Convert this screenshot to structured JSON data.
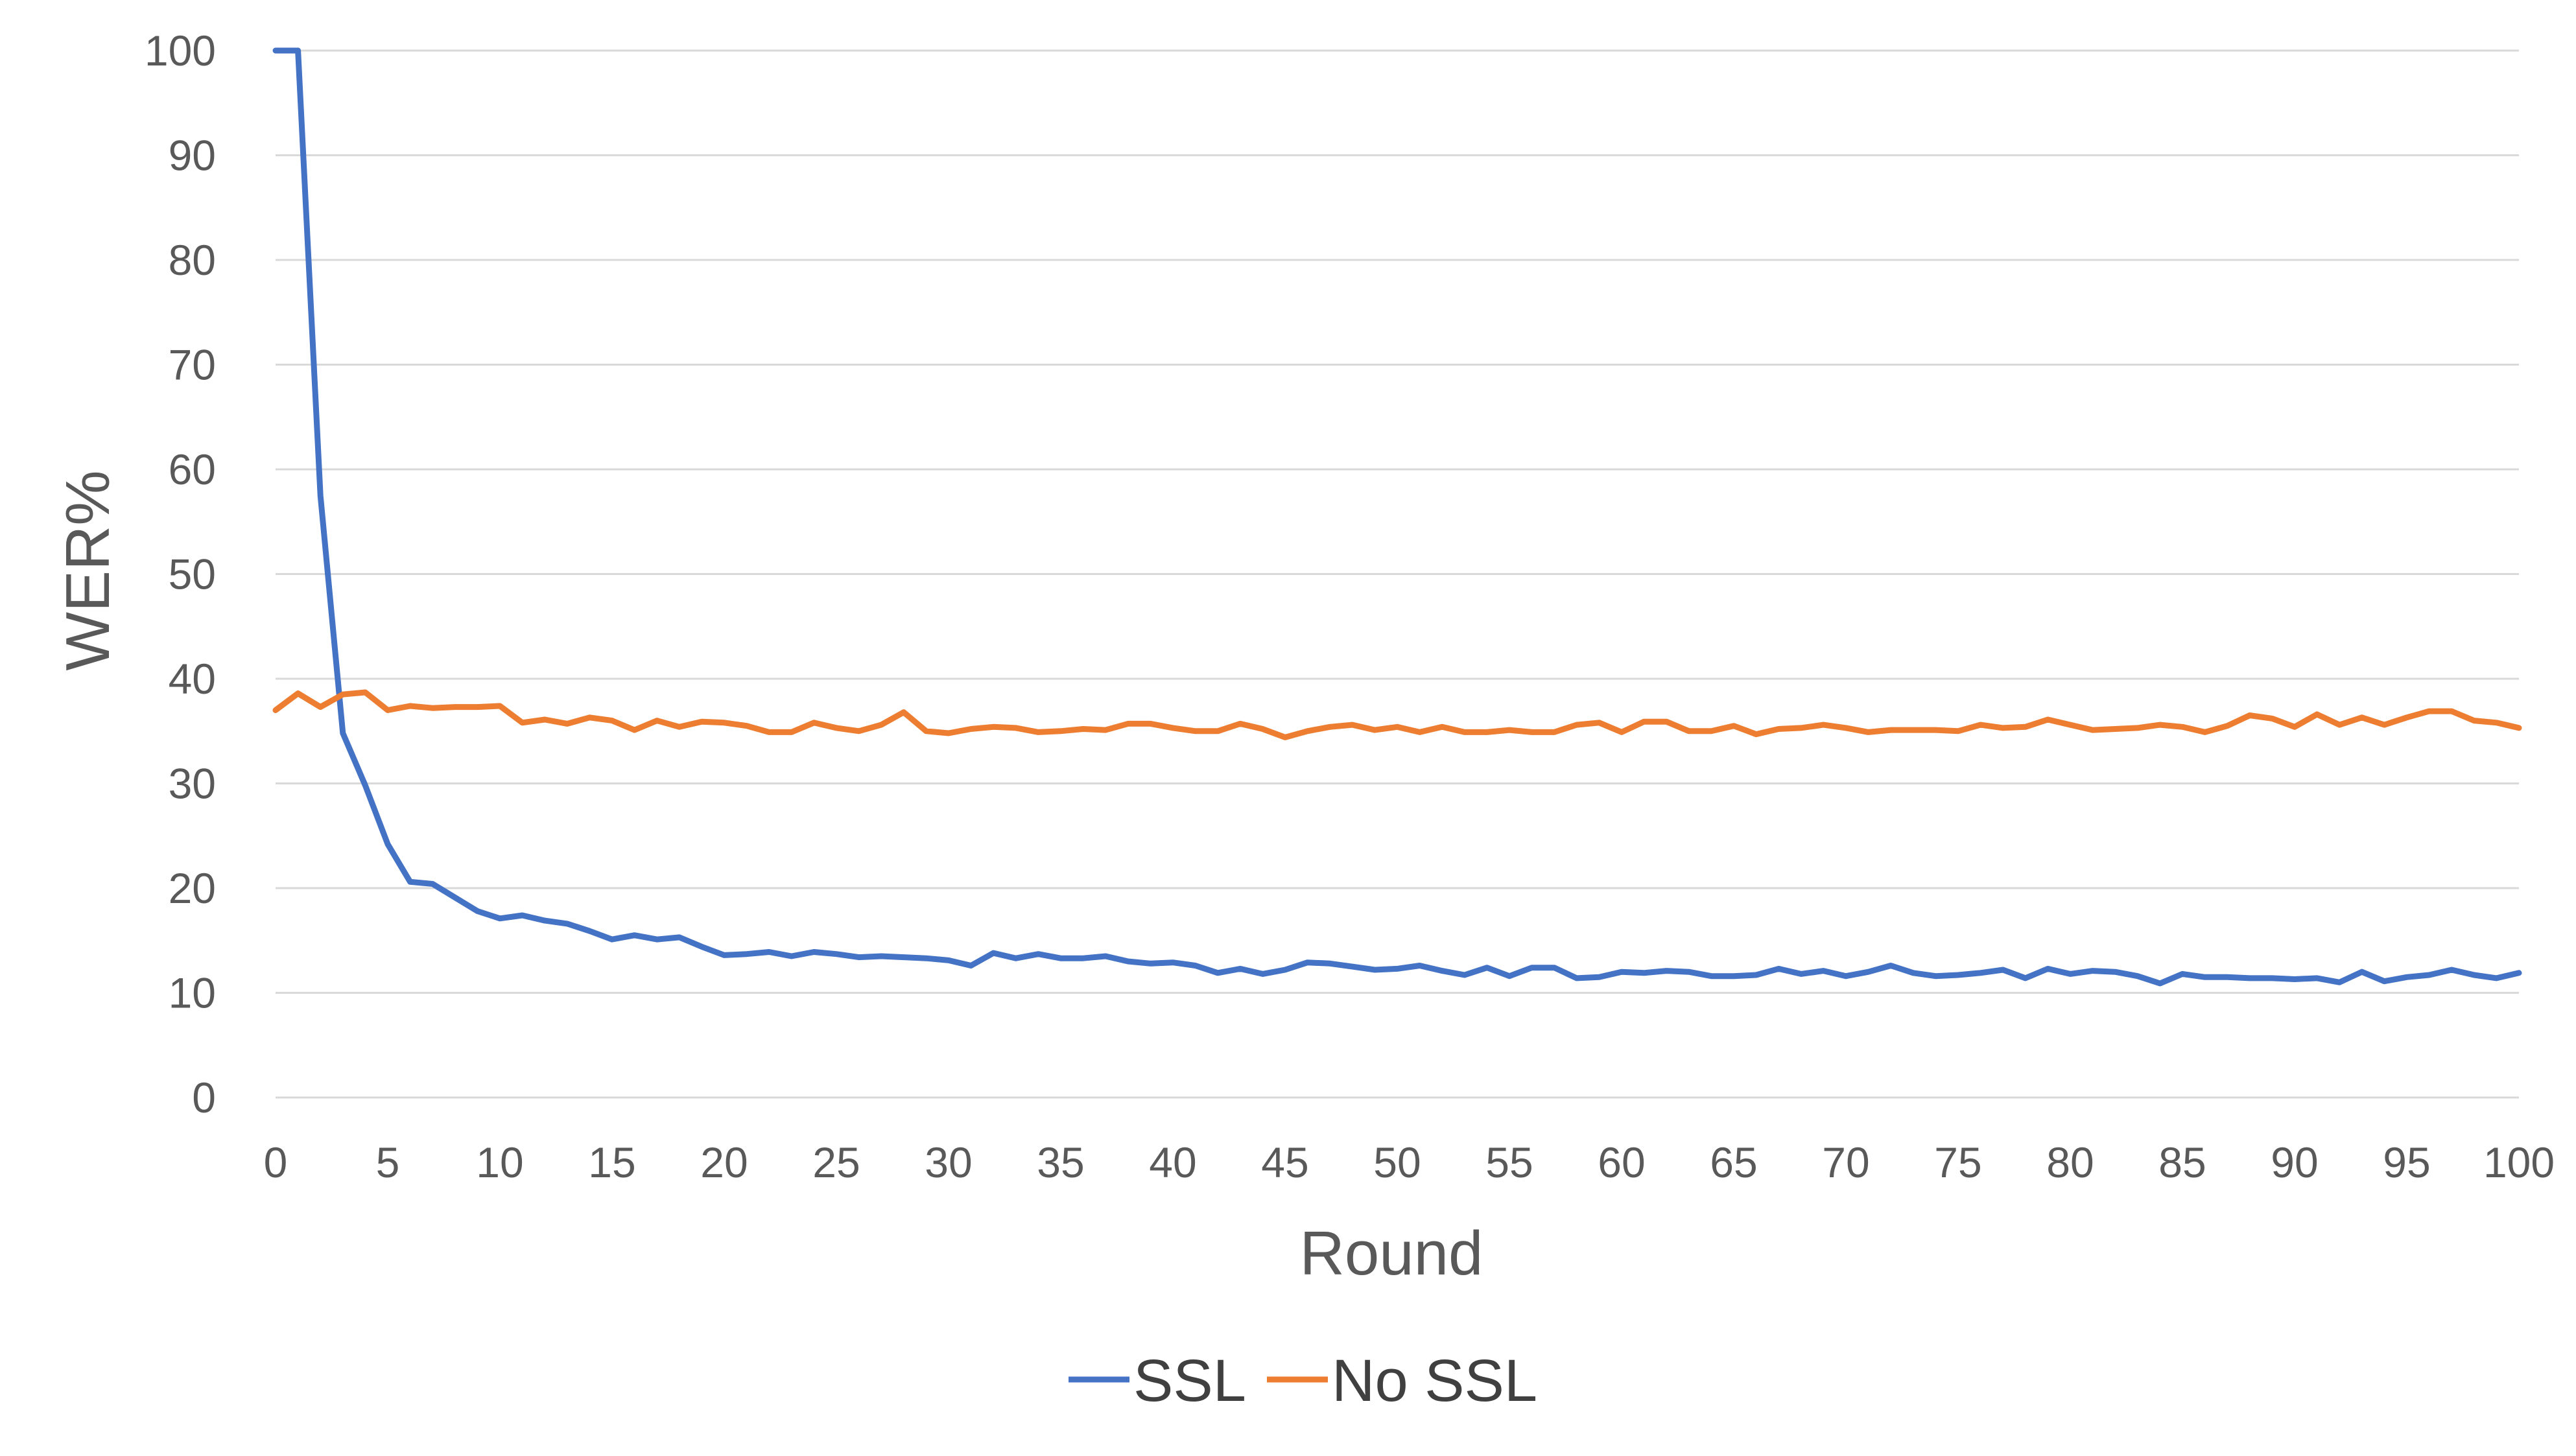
{
  "chart_data": {
    "type": "line",
    "title": "",
    "xlabel": "Round",
    "ylabel": "WER%",
    "xlim": [
      0,
      100
    ],
    "ylim": [
      0,
      100
    ],
    "x_ticks": [
      0,
      5,
      10,
      15,
      20,
      25,
      30,
      35,
      40,
      45,
      50,
      55,
      60,
      65,
      70,
      75,
      80,
      85,
      90,
      95,
      100
    ],
    "y_ticks": [
      0,
      10,
      20,
      30,
      40,
      50,
      60,
      70,
      80,
      90,
      100
    ],
    "grid": "horizontal",
    "legend_position": "bottom",
    "x": [
      0,
      1,
      2,
      3,
      4,
      5,
      6,
      7,
      8,
      9,
      10,
      11,
      12,
      13,
      14,
      15,
      16,
      17,
      18,
      19,
      20,
      21,
      22,
      23,
      24,
      25,
      26,
      27,
      28,
      29,
      30,
      31,
      32,
      33,
      34,
      35,
      36,
      37,
      38,
      39,
      40,
      41,
      42,
      43,
      44,
      45,
      46,
      47,
      48,
      49,
      50,
      51,
      52,
      53,
      54,
      55,
      56,
      57,
      58,
      59,
      60,
      61,
      62,
      63,
      64,
      65,
      66,
      67,
      68,
      69,
      70,
      71,
      72,
      73,
      74,
      75,
      76,
      77,
      78,
      79,
      80,
      81,
      82,
      83,
      84,
      85,
      86,
      87,
      88,
      89,
      90,
      91,
      92,
      93,
      94,
      95,
      96,
      97,
      98,
      99,
      100
    ],
    "series": [
      {
        "name": "SSL",
        "color": "#4472c4",
        "values": [
          100,
          100,
          57.5,
          34.8,
          29.8,
          24.2,
          20.6,
          20.4,
          19.1,
          17.8,
          17.1,
          17.4,
          16.9,
          16.6,
          15.9,
          15.1,
          15.5,
          15.1,
          15.3,
          14.4,
          13.6,
          13.7,
          13.9,
          13.5,
          13.9,
          13.7,
          13.4,
          13.5,
          13.4,
          13.3,
          13.1,
          12.6,
          13.8,
          13.3,
          13.7,
          13.3,
          13.3,
          13.5,
          13.0,
          12.8,
          12.9,
          12.6,
          11.9,
          12.3,
          11.8,
          12.2,
          12.9,
          12.8,
          12.5,
          12.2,
          12.3,
          12.6,
          12.1,
          11.7,
          12.4,
          11.6,
          12.4,
          12.4,
          11.4,
          11.5,
          12.0,
          11.9,
          12.1,
          12.0,
          11.6,
          11.6,
          11.7,
          12.3,
          11.8,
          12.1,
          11.6,
          12.0,
          12.6,
          11.9,
          11.6,
          11.7,
          11.9,
          12.2,
          11.4,
          12.3,
          11.8,
          12.1,
          12.0,
          11.6,
          10.9,
          11.8,
          11.5,
          11.5,
          11.4,
          11.4,
          11.3,
          11.4,
          11.0,
          12.0,
          11.1,
          11.5,
          11.7,
          12.2,
          11.7,
          11.4,
          11.9
        ]
      },
      {
        "name": "No SSL",
        "color": "#ed7d31",
        "values": [
          37.0,
          38.6,
          37.3,
          38.5,
          38.7,
          37.0,
          37.4,
          37.2,
          37.3,
          37.3,
          37.4,
          35.8,
          36.1,
          35.7,
          36.3,
          36.0,
          35.1,
          36.0,
          35.4,
          35.9,
          35.8,
          35.5,
          34.9,
          34.9,
          35.8,
          35.3,
          35.0,
          35.6,
          36.8,
          35.0,
          34.8,
          35.2,
          35.4,
          35.3,
          34.9,
          35.0,
          35.2,
          35.1,
          35.7,
          35.7,
          35.3,
          35.0,
          35.0,
          35.7,
          35.2,
          34.4,
          35.0,
          35.4,
          35.6,
          35.1,
          35.4,
          34.9,
          35.4,
          34.9,
          34.9,
          35.1,
          34.9,
          34.9,
          35.6,
          35.8,
          34.9,
          35.9,
          35.9,
          35.0,
          35.0,
          35.5,
          34.7,
          35.2,
          35.3,
          35.6,
          35.3,
          34.9,
          35.1,
          35.1,
          35.1,
          35.0,
          35.6,
          35.3,
          35.4,
          36.1,
          35.6,
          35.1,
          35.2,
          35.3,
          35.6,
          35.4,
          34.9,
          35.5,
          36.5,
          36.2,
          35.4,
          36.6,
          35.6,
          36.3,
          35.6,
          36.3,
          36.9,
          36.9,
          36.0,
          35.8,
          35.3
        ]
      }
    ]
  }
}
